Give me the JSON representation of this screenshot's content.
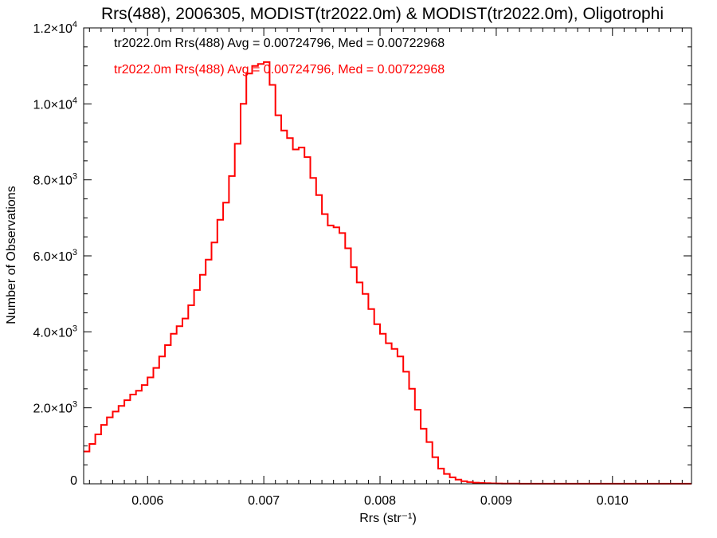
{
  "chart_data": {
    "type": "line",
    "title": "Rrs(488), 2006305, MODIST(tr2022.0m) & MODIST(tr2022.0m), Oligotrophi",
    "xlabel": "Rrs (str⁻¹)",
    "ylabel": "Number of Observations",
    "xlim": [
      0.00545,
      0.01068
    ],
    "ylim": [
      0,
      12000
    ],
    "x_ticks": [
      {
        "value": 0.006,
        "label": "0.006"
      },
      {
        "value": 0.007,
        "label": "0.007"
      },
      {
        "value": 0.008,
        "label": "0.008"
      },
      {
        "value": 0.009,
        "label": "0.009"
      },
      {
        "value": 0.01,
        "label": "0.010"
      }
    ],
    "y_ticks": [
      {
        "value": 0,
        "mant": "0",
        "exp": ""
      },
      {
        "value": 2000,
        "mant": "2.0×10",
        "exp": "3"
      },
      {
        "value": 4000,
        "mant": "4.0×10",
        "exp": "3"
      },
      {
        "value": 6000,
        "mant": "6.0×10",
        "exp": "3"
      },
      {
        "value": 8000,
        "mant": "8.0×10",
        "exp": "3"
      },
      {
        "value": 10000,
        "mant": "1.0×10",
        "exp": "4"
      },
      {
        "value": 12000,
        "mant": "1.2×10",
        "exp": "4"
      }
    ],
    "legend": [
      {
        "text": "tr2022.0m Rrs(488) Avg = 0.00724796, Med = 0.00722968",
        "color": "#000000"
      },
      {
        "text": "tr2022.0m Rrs(488) Avg = 0.00724796, Med = 0.00722968",
        "color": "#ff0000"
      }
    ],
    "series": [
      {
        "color": "#ff0000",
        "step": true,
        "x": [
          0.00545,
          0.0055,
          0.00555,
          0.0056,
          0.00565,
          0.0057,
          0.00575,
          0.0058,
          0.00585,
          0.0059,
          0.00595,
          0.006,
          0.00605,
          0.0061,
          0.00615,
          0.0062,
          0.00625,
          0.0063,
          0.00635,
          0.0064,
          0.00645,
          0.0065,
          0.00655,
          0.0066,
          0.00665,
          0.0067,
          0.00675,
          0.0068,
          0.00685,
          0.0069,
          0.00695,
          0.007,
          0.00705,
          0.0071,
          0.00715,
          0.0072,
          0.00725,
          0.0073,
          0.00735,
          0.0074,
          0.00745,
          0.0075,
          0.00755,
          0.0076,
          0.00765,
          0.0077,
          0.00775,
          0.0078,
          0.00785,
          0.0079,
          0.00795,
          0.008,
          0.00805,
          0.0081,
          0.00815,
          0.0082,
          0.00825,
          0.0083,
          0.00835,
          0.0084,
          0.00845,
          0.0085,
          0.00855,
          0.0086,
          0.00865,
          0.0087,
          0.00875,
          0.0088,
          0.00885,
          0.0089,
          0.00895,
          0.009,
          0.00905,
          0.0091,
          0.00915,
          0.0092,
          0.00925,
          0.0093,
          0.00935,
          0.0094,
          0.00945,
          0.0095,
          0.00955,
          0.0096,
          0.00965,
          0.0097,
          0.00975,
          0.0098,
          0.00985,
          0.0099,
          0.00995,
          0.01,
          0.01005,
          0.0101,
          0.01015,
          0.0102,
          0.01025,
          0.0103,
          0.01035,
          0.0104,
          0.01045,
          0.0105,
          0.01055,
          0.0106,
          0.01065
        ],
        "values": [
          850,
          1050,
          1300,
          1550,
          1750,
          1900,
          2050,
          2200,
          2350,
          2450,
          2600,
          2800,
          3050,
          3350,
          3650,
          3950,
          4150,
          4350,
          4700,
          5100,
          5500,
          5900,
          6350,
          6950,
          7400,
          8100,
          8950,
          10000,
          10800,
          11000,
          11050,
          11100,
          10500,
          9700,
          9300,
          9100,
          8800,
          8850,
          8600,
          8050,
          7600,
          7100,
          6800,
          6750,
          6600,
          6200,
          5700,
          5300,
          5000,
          4600,
          4200,
          3950,
          3700,
          3550,
          3350,
          2950,
          2500,
          1950,
          1450,
          1100,
          700,
          400,
          260,
          170,
          110,
          70,
          45,
          30,
          20,
          15,
          10,
          8,
          6,
          5,
          4,
          3,
          3,
          3,
          3,
          3,
          3,
          2,
          2,
          2,
          2,
          2,
          2,
          2,
          2,
          2,
          2,
          2,
          2,
          2,
          2,
          2,
          2,
          2,
          2,
          2,
          2,
          2,
          2,
          2,
          2
        ]
      }
    ]
  }
}
